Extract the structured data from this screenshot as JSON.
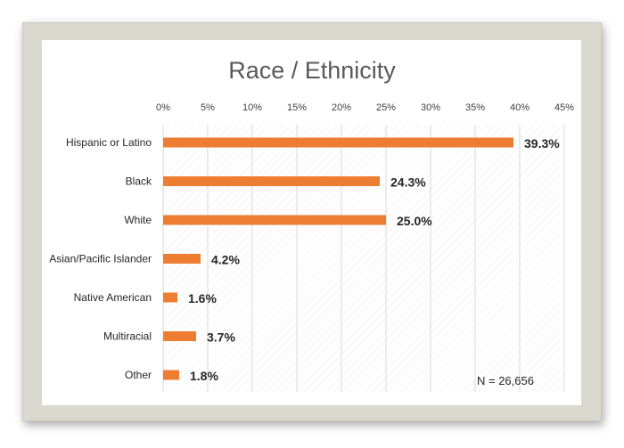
{
  "chart_data": {
    "type": "bar",
    "orientation": "horizontal",
    "title": "Race / Ethnicity",
    "categories": [
      "Hispanic or Latino",
      "Black",
      "White",
      "Asian/Pacific Islander",
      "Native American",
      "Multiracial",
      "Other"
    ],
    "values": [
      39.3,
      24.3,
      25.0,
      4.2,
      1.6,
      3.7,
      1.8
    ],
    "data_labels": [
      "39.3%",
      "24.3%",
      "25.0%",
      "4.2%",
      "1.6%",
      "3.7%",
      "1.8%"
    ],
    "x_ticks": [
      "0%",
      "5%",
      "10%",
      "15%",
      "20%",
      "25%",
      "30%",
      "35%",
      "40%",
      "45%"
    ],
    "xlim": [
      0,
      45
    ],
    "x_axis_position": "top",
    "grid": true,
    "bar_color": "#ed7d31",
    "annotation": "N = 26,656"
  }
}
